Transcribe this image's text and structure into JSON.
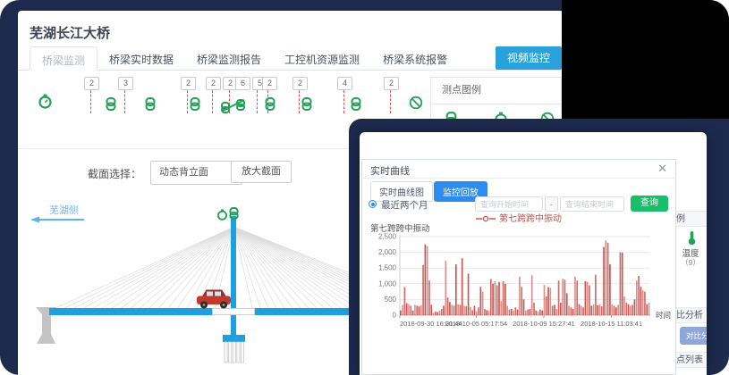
{
  "app": {
    "title": "芜湖长江大桥",
    "tabs": [
      "桥梁监测",
      "桥梁实时数据",
      "桥梁监测报告",
      "工控机资源监测",
      "桥梁系统报警"
    ],
    "video_button": "视频监控",
    "sensor_badges": [
      "2",
      "3",
      "2",
      "2",
      "2",
      "6",
      "5",
      "2",
      "2",
      "4",
      "2"
    ],
    "legend_panel_title": "测点图例",
    "section_label": "截面选择：",
    "section_value": "动态背立面",
    "section_caret": "▼",
    "zoom_section_button": "放大截面",
    "bank_label": "芜湖侧"
  },
  "dialog": {
    "title": "实时曲线",
    "close_icon": "✕",
    "tab_realtime": "实时曲线图",
    "tab_playback": "监控回放",
    "radio_recent": "最近两个月",
    "start_time_placeholder": "查询开始时间",
    "range_separator": "-",
    "end_time_placeholder": "查询结束时间",
    "query_button": "查询",
    "legend_label": "第七跨跨中振动"
  },
  "side_panel": {
    "legend_header": "图例",
    "temperature_label": "温度",
    "temperature_count": "（9）",
    "compare_header": "对比分析",
    "compare_button": "对比分析",
    "list_header": "测点列表"
  },
  "chart_data": {
    "type": "bar",
    "title": "第七跨跨中振动",
    "series": [
      {
        "name": "第七跨跨中振动",
        "values": [
          150,
          330,
          900,
          380,
          350,
          300,
          150,
          330,
          300,
          280,
          320,
          1600,
          2250,
          2200,
          1100,
          330,
          80,
          120,
          100,
          150,
          200,
          300,
          1730,
          560,
          420,
          330,
          300,
          1620,
          350,
          330,
          1810,
          300,
          280,
          1320,
          260,
          160,
          300,
          120,
          250,
          900,
          750,
          200,
          160,
          150,
          1150,
          1000,
          1080,
          950,
          1060,
          450,
          1080,
          1000,
          300,
          180,
          200,
          150,
          250,
          180,
          1230,
          900,
          500,
          150,
          180,
          200,
          1270,
          400,
          150,
          120,
          180,
          150,
          960,
          600,
          890,
          870,
          300,
          330,
          200,
          1100,
          400,
          1160,
          1130,
          700,
          300,
          250,
          200,
          1230,
          1100,
          350,
          300,
          250,
          1080,
          1060,
          950,
          300,
          350,
          1290,
          320,
          350,
          280,
          2170,
          2380,
          2300,
          1620,
          350,
          300,
          250,
          330,
          2000,
          1990,
          600,
          400,
          350,
          300,
          330,
          500,
          1100,
          1250,
          900,
          800,
          750,
          350,
          400
        ]
      }
    ],
    "x_tick_labels": [
      "2018-09-30 16:01:44",
      "2018-10-05 05:17:54",
      "2018-10-09 15:27:41",
      "2018-10-15 11:03:41"
    ],
    "x_tick_positions": [
      0.0,
      0.305,
      0.575,
      0.845
    ],
    "xlabel": "时间",
    "ylim": [
      0,
      2500
    ],
    "yticks": [
      0,
      500,
      1000,
      1500,
      2000,
      2500
    ],
    "grid": true,
    "legend_position": "top"
  },
  "colors": {
    "navy": "#1d2a4d",
    "primary": "#2d8cf0",
    "green": "#19be6b",
    "videoblue": "#29a2dc",
    "chartred": "#c64541",
    "sensorgreen": "#21a356",
    "deckblue": "#1e9fdf"
  }
}
